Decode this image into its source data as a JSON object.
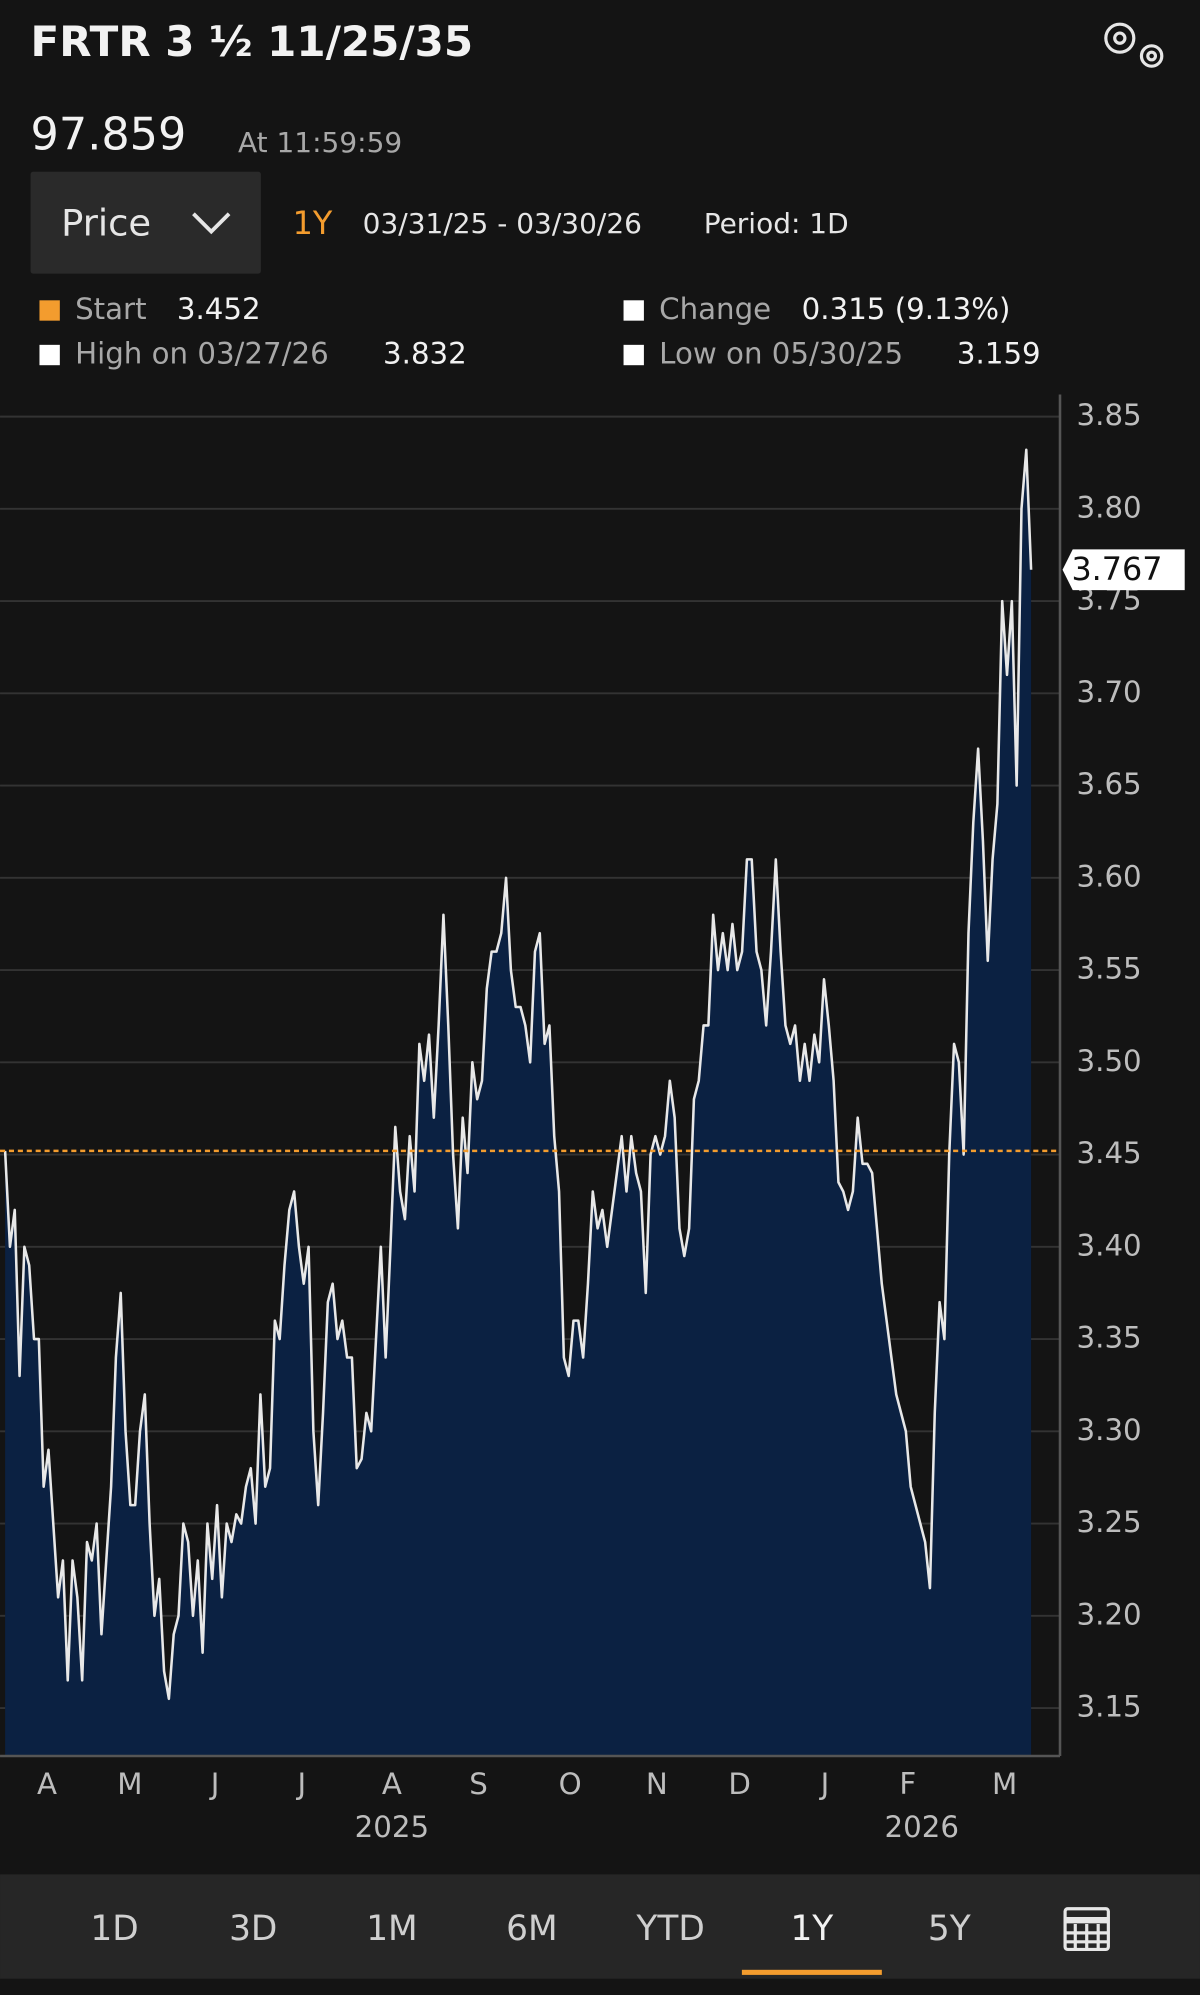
{
  "header": {
    "title": "FRTR 3 ½ 11/25/35",
    "price": "97.859",
    "time": "At 11:59:59"
  },
  "controls": {
    "field": "Price",
    "range": "1Y",
    "dates": "03/31/25 - 03/30/26",
    "period": "Period: 1D"
  },
  "chart_data": {
    "type": "area",
    "values": [
      3.452,
      3.4,
      3.42,
      3.33,
      3.4,
      3.39,
      3.35,
      3.35,
      3.27,
      3.29,
      3.25,
      3.21,
      3.23,
      3.165,
      3.23,
      3.21,
      3.165,
      3.24,
      3.23,
      3.25,
      3.19,
      3.23,
      3.27,
      3.34,
      3.375,
      3.3,
      3.26,
      3.26,
      3.3,
      3.32,
      3.25,
      3.2,
      3.22,
      3.17,
      3.155,
      3.19,
      3.2,
      3.25,
      3.24,
      3.2,
      3.23,
      3.18,
      3.25,
      3.22,
      3.26,
      3.21,
      3.25,
      3.24,
      3.255,
      3.25,
      3.27,
      3.28,
      3.25,
      3.32,
      3.27,
      3.28,
      3.36,
      3.35,
      3.39,
      3.42,
      3.43,
      3.4,
      3.38,
      3.4,
      3.3,
      3.26,
      3.31,
      3.37,
      3.38,
      3.35,
      3.36,
      3.34,
      3.34,
      3.28,
      3.285,
      3.31,
      3.3,
      3.35,
      3.4,
      3.34,
      3.4,
      3.465,
      3.43,
      3.415,
      3.46,
      3.43,
      3.51,
      3.49,
      3.515,
      3.47,
      3.52,
      3.58,
      3.52,
      3.45,
      3.41,
      3.47,
      3.44,
      3.5,
      3.48,
      3.49,
      3.54,
      3.56,
      3.56,
      3.57,
      3.6,
      3.55,
      3.53,
      3.53,
      3.52,
      3.5,
      3.56,
      3.57,
      3.51,
      3.52,
      3.46,
      3.43,
      3.34,
      3.33,
      3.36,
      3.36,
      3.34,
      3.38,
      3.43,
      3.41,
      3.42,
      3.4,
      3.42,
      3.44,
      3.46,
      3.43,
      3.46,
      3.44,
      3.43,
      3.375,
      3.45,
      3.46,
      3.45,
      3.46,
      3.49,
      3.47,
      3.41,
      3.395,
      3.41,
      3.48,
      3.49,
      3.52,
      3.52,
      3.58,
      3.55,
      3.57,
      3.55,
      3.575,
      3.55,
      3.56,
      3.61,
      3.61,
      3.56,
      3.55,
      3.52,
      3.56,
      3.61,
      3.56,
      3.52,
      3.51,
      3.52,
      3.49,
      3.51,
      3.49,
      3.515,
      3.5,
      3.545,
      3.52,
      3.49,
      3.435,
      3.43,
      3.42,
      3.43,
      3.47,
      3.445,
      3.445,
      3.44,
      3.41,
      3.38,
      3.36,
      3.34,
      3.32,
      3.31,
      3.3,
      3.27,
      3.26,
      3.25,
      3.24,
      3.215,
      3.31,
      3.37,
      3.35,
      3.45,
      3.51,
      3.5,
      3.45,
      3.57,
      3.63,
      3.67,
      3.62,
      3.555,
      3.61,
      3.64,
      3.75,
      3.71,
      3.75,
      3.65,
      3.8,
      3.832,
      3.767
    ],
    "xlim": [
      0,
      219
    ],
    "xticks": [
      {
        "value": 8.7,
        "label": "A"
      },
      {
        "value": 25.9,
        "label": "M"
      },
      {
        "value": 43.6,
        "label": "J"
      },
      {
        "value": 61.6,
        "label": "J"
      },
      {
        "value": 80.3,
        "label": "A"
      },
      {
        "value": 98.3,
        "label": "S"
      },
      {
        "value": 117.3,
        "label": "O"
      },
      {
        "value": 135.3,
        "label": "N"
      },
      {
        "value": 152.5,
        "label": "D"
      },
      {
        "value": 170.2,
        "label": "J"
      },
      {
        "value": 187.4,
        "label": "F"
      },
      {
        "value": 207.5,
        "label": "M"
      }
    ],
    "year_labels": [
      {
        "value": 80.3,
        "label": "2025"
      },
      {
        "value": 190.3,
        "label": "2026"
      }
    ],
    "ylim": [
      3.124,
      3.862
    ],
    "yticks": [
      3.15,
      {
        "value": 3.2,
        "label": "3.20"
      },
      3.25,
      {
        "value": 3.3,
        "label": "3.30"
      },
      3.35,
      {
        "value": 3.4,
        "label": "3.40"
      },
      3.45,
      {
        "value": 3.5,
        "label": "3.50"
      },
      3.55,
      {
        "value": 3.6,
        "label": "3.60"
      },
      3.65,
      {
        "value": 3.7,
        "label": "3.70"
      },
      3.75,
      {
        "value": 3.8,
        "label": "3.80"
      },
      3.85
    ],
    "grid": true,
    "line_color": "#e8e8e8",
    "fill_color": "#0b2142",
    "stats": [
      {
        "label": "Start",
        "value": 3.452,
        "color": "#f39c2e"
      },
      {
        "label": "Change",
        "value": "0.315 (9.13%)",
        "color": "#ffffff"
      },
      {
        "label": "High on 03/27/26",
        "value": 3.832,
        "color": "#ffffff"
      },
      {
        "label": "Low on 05/30/25",
        "value": 3.159,
        "color": "#ffffff"
      }
    ]
  },
  "nav": {
    "items": [
      "1D",
      "3D",
      "1M",
      "6M",
      "YTD",
      "1Y",
      "5Y"
    ],
    "active": 5
  }
}
